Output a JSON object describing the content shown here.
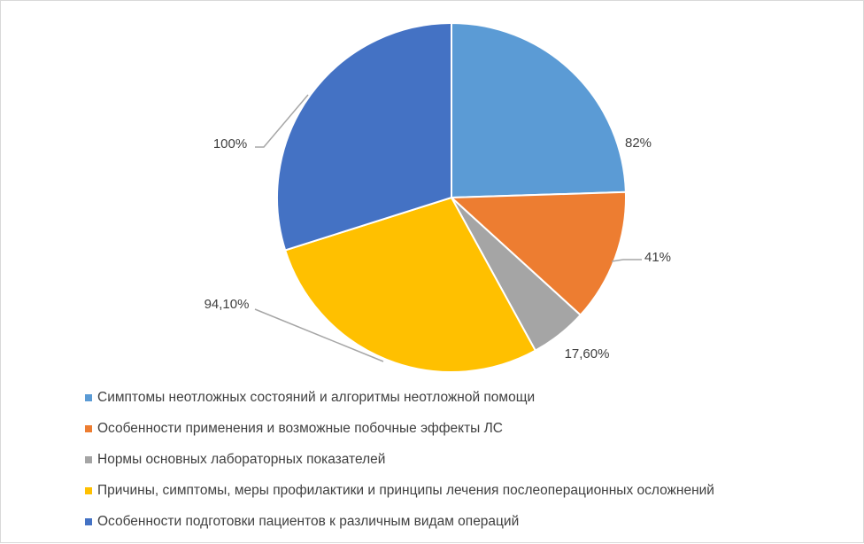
{
  "chart_data": {
    "type": "pie",
    "categories": [
      "Симптомы неотложных состояний и алгоритмы неотложной помощи",
      "Особенности применения и возможные побочные эффекты ЛС",
      "Нормы основных лабораторных показателей",
      "Причины, симптомы, меры профилактики и принципы лечения послеоперационных осложнений",
      "Особенности подготовки пациентов к различным видам операций"
    ],
    "values": [
      82,
      41,
      17.6,
      94.1,
      100
    ],
    "data_labels": [
      "82%",
      "41%",
      "17,60%",
      "94,10%",
      "100%"
    ],
    "colors": [
      "#5b9bd5",
      "#ed7d31",
      "#a5a5a5",
      "#ffc000",
      "#4472c4"
    ],
    "title": "",
    "legend_position": "bottom"
  }
}
